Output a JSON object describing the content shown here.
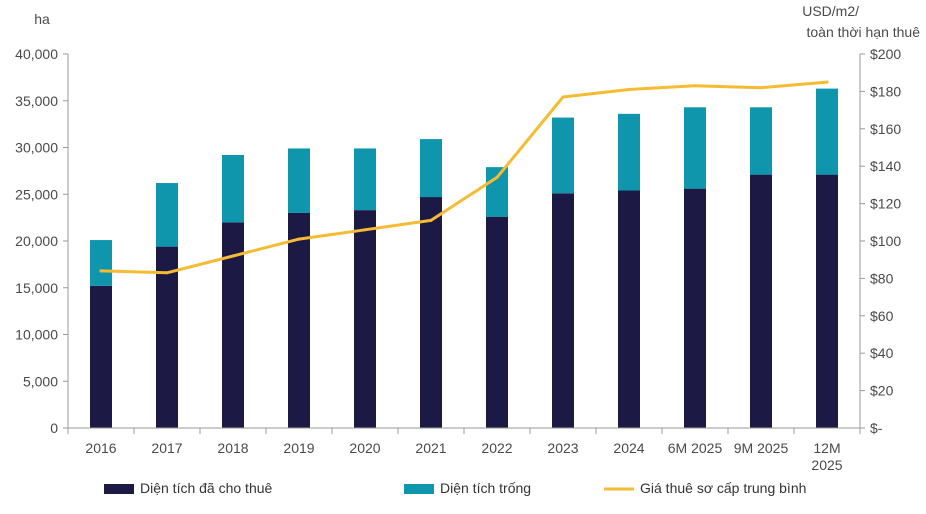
{
  "chart_data": {
    "type": "bar",
    "stacked": true,
    "categories": [
      "2016",
      "2017",
      "2018",
      "2019",
      "2020",
      "2021",
      "2022",
      "2023",
      "2024",
      "6M 2025",
      "9M 2025",
      "12M 2025"
    ],
    "series": [
      {
        "name": "Diện tích đã cho thuê",
        "type": "bar",
        "axis": "left",
        "color": "#1c1a44",
        "values": [
          15200,
          19400,
          22000,
          23000,
          23300,
          24700,
          22600,
          25100,
          25400,
          25600,
          27100,
          27100
        ]
      },
      {
        "name": "Diện tích trống",
        "type": "bar",
        "axis": "left",
        "color": "#0f96ad",
        "values": [
          4900,
          6800,
          7200,
          6900,
          6600,
          6200,
          5300,
          8100,
          8200,
          8700,
          7200,
          9200
        ]
      },
      {
        "name": "Giá thuê sơ cấp trung bình",
        "type": "line",
        "axis": "right",
        "color": "#f5bb33",
        "values": [
          84,
          83,
          92,
          101,
          106,
          111,
          134,
          177,
          181,
          183,
          182,
          185
        ]
      }
    ],
    "ylabel_left": "ha",
    "ylabel_right": [
      "USD/m2/",
      "toàn thời hạn thuê"
    ],
    "ylim_left": [
      0,
      40000
    ],
    "yticks_left": [
      "0",
      "5,000",
      "10,000",
      "15,000",
      "20,000",
      "25,000",
      "30,000",
      "35,000",
      "40,000"
    ],
    "ylim_right": [
      0,
      200
    ],
    "yticks_right": [
      "$-",
      "$20",
      "$40",
      "$60",
      "$80",
      "$100",
      "$120",
      "$140",
      "$160",
      "$180",
      "$200"
    ],
    "grid": false,
    "legend_position": "bottom"
  }
}
